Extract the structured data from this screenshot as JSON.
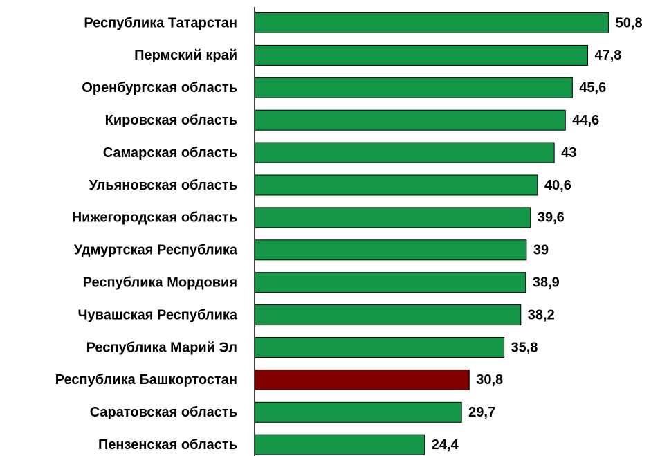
{
  "chart_data": {
    "type": "barh",
    "categories": [
      "Республика Татарстан",
      "Пермский край",
      "Оренбургская область",
      "Кировская область",
      "Самарская область",
      "Ульяновская область",
      "Нижегородская область",
      "Удмуртская Республика",
      "Республика Мордовия",
      "Чувашская Республика",
      "Республика Марий Эл",
      "Республика Башкортостан",
      "Саратовская область",
      "Пензенская область"
    ],
    "values": [
      50.8,
      47.8,
      45.6,
      44.6,
      43,
      40.6,
      39.6,
      39,
      38.9,
      38.2,
      35.8,
      30.8,
      29.7,
      24.4
    ],
    "value_labels": [
      "50,8",
      "47,8",
      "45,6",
      "44,6",
      "43",
      "40,6",
      "39,6",
      "39",
      "38,9",
      "38,2",
      "35,8",
      "30,8",
      "29,7",
      "24,4"
    ],
    "colors": [
      "#149647",
      "#149647",
      "#149647",
      "#149647",
      "#149647",
      "#149647",
      "#149647",
      "#149647",
      "#149647",
      "#149647",
      "#149647",
      "#800000",
      "#149647",
      "#149647"
    ],
    "xlim": [
      0,
      55
    ]
  }
}
